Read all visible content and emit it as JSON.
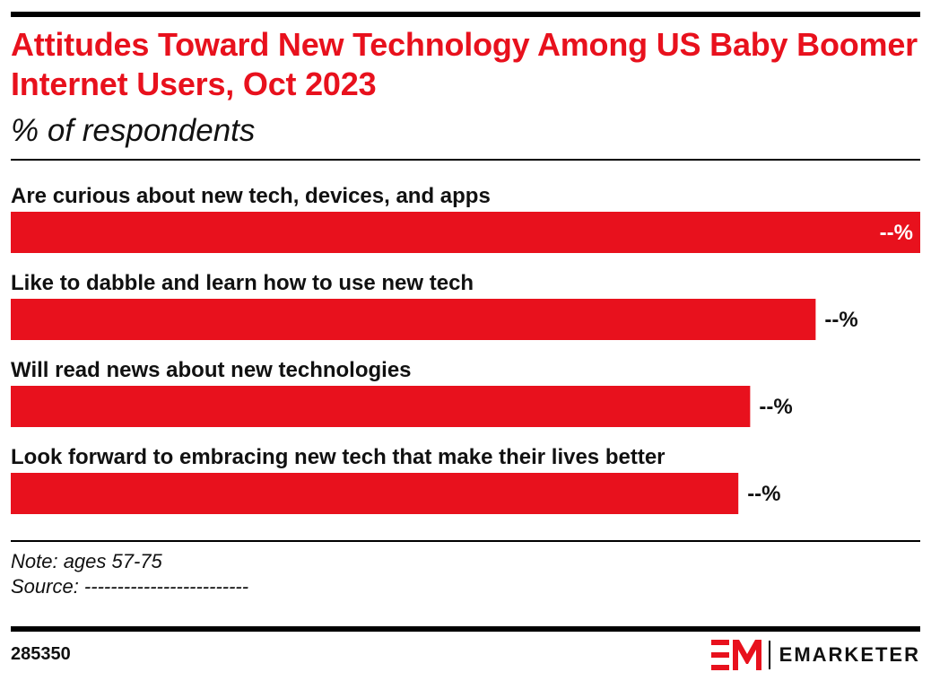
{
  "header": {
    "title": "Attitudes Toward New Technology Among US Baby Boomer Internet Users, Oct 2023",
    "subtitle": "% of respondents"
  },
  "chart_data": {
    "type": "bar",
    "orientation": "horizontal",
    "categories": [
      "Are curious about new tech, devices, and apps",
      "Like to dabble and learn how to use new tech",
      "Will read news about new technologies",
      "Look forward to embracing new tech that make their lives better"
    ],
    "values": [
      100,
      88.5,
      81.3,
      80.0
    ],
    "value_labels": [
      "--%",
      "--%",
      "--%",
      "--%"
    ],
    "value_note": "bar lengths relative to the largest bar; actual percentages are masked as --%",
    "bar_color": "#e8111d",
    "grid": false,
    "legend": "none"
  },
  "footer": {
    "note": "Note: ages 57-75",
    "source": "Source: -------------------------",
    "chart_id": "285350",
    "brand": "EMARKETER"
  }
}
